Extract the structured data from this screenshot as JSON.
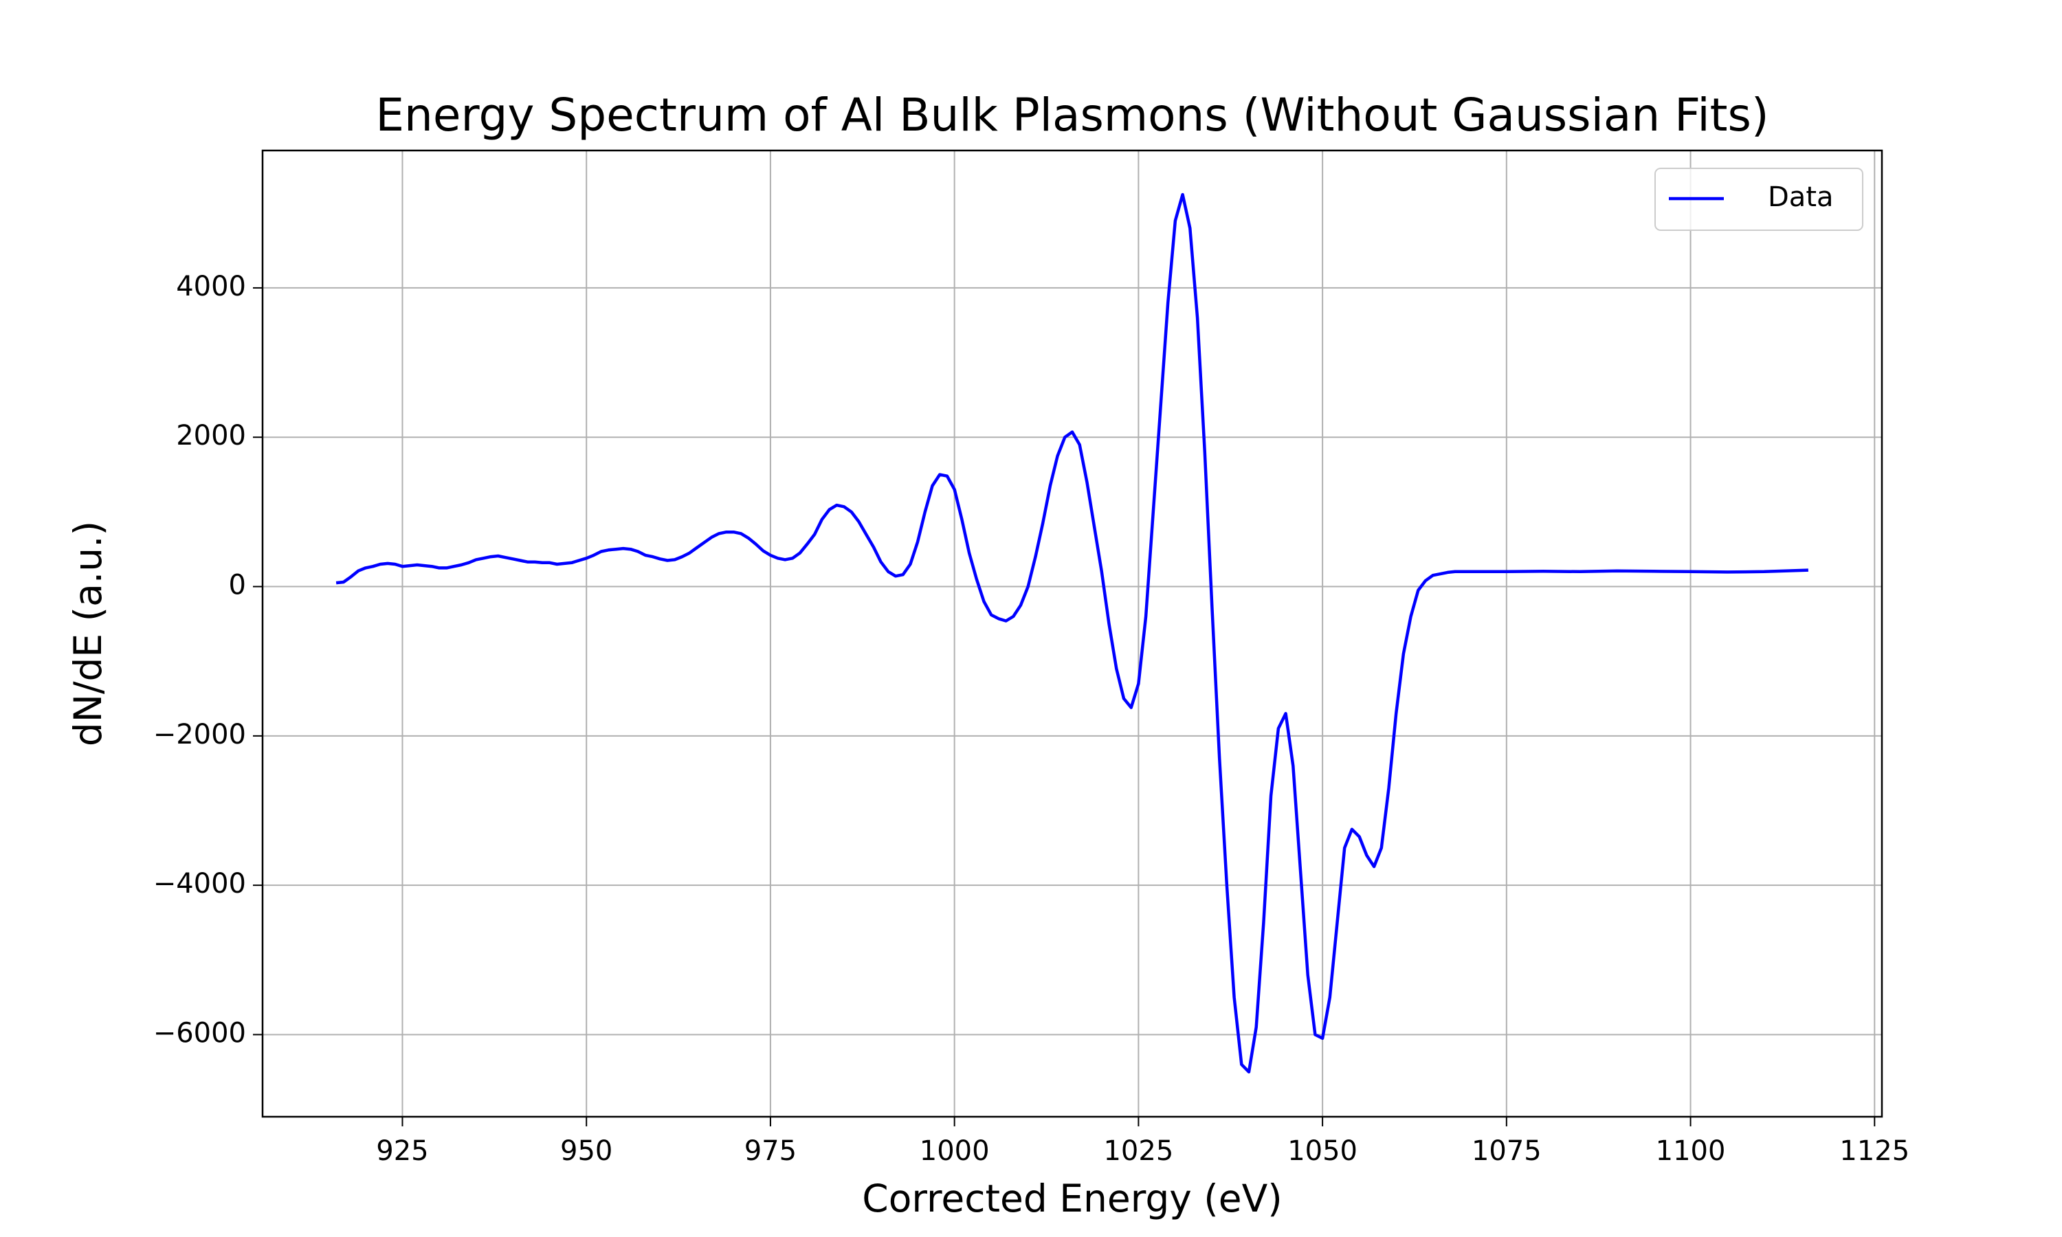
{
  "chart_data": {
    "type": "line",
    "title": "Energy Spectrum of Al Bulk Plasmons (Without Gaussian Fits)",
    "x_label": "Corrected Energy (eV)",
    "y_label": "dN/dE (a.u.)",
    "xlim": [
      906,
      1126
    ],
    "ylim": [
      -7100,
      5840
    ],
    "xticks": [
      925,
      950,
      975,
      1000,
      1025,
      1050,
      1075,
      1100,
      1125
    ],
    "yticks": [
      {
        "value": -6000,
        "label": "−6000"
      },
      {
        "value": -4000,
        "label": "−4000"
      },
      {
        "value": -2000,
        "label": "−2000"
      },
      0,
      2000,
      4000
    ],
    "grid": true,
    "legend": "upper right",
    "x": [
      916,
      917,
      918,
      919,
      920,
      921,
      922,
      923,
      924,
      925,
      926,
      927,
      928,
      929,
      930,
      931,
      932,
      933,
      934,
      935,
      936,
      937,
      938,
      939,
      940,
      941,
      942,
      943,
      944,
      945,
      946,
      947,
      948,
      949,
      950,
      951,
      952,
      953,
      954,
      955,
      956,
      957,
      958,
      959,
      960,
      961,
      962,
      963,
      964,
      965,
      966,
      967,
      968,
      969,
      970,
      971,
      972,
      973,
      974,
      975,
      976,
      977,
      978,
      979,
      980,
      981,
      982,
      983,
      984,
      985,
      986,
      987,
      988,
      989,
      990,
      991,
      992,
      993,
      994,
      995,
      996,
      997,
      998,
      999,
      1000,
      1001,
      1002,
      1003,
      1004,
      1005,
      1006,
      1007,
      1008,
      1009,
      1010,
      1011,
      1012,
      1013,
      1014,
      1015,
      1016,
      1017,
      1018,
      1019,
      1020,
      1021,
      1022,
      1023,
      1024,
      1025,
      1026,
      1027,
      1028,
      1029,
      1030,
      1031,
      1032,
      1033,
      1034,
      1035,
      1036,
      1037,
      1038,
      1039,
      1040,
      1041,
      1042,
      1043,
      1044,
      1045,
      1046,
      1047,
      1048,
      1049,
      1050,
      1051,
      1052,
      1053,
      1054,
      1055,
      1056,
      1057,
      1058,
      1059,
      1060,
      1061,
      1062,
      1063,
      1064,
      1065,
      1066,
      1067,
      1068,
      1070,
      1075,
      1080,
      1085,
      1090,
      1095,
      1100,
      1105,
      1110,
      1116
    ],
    "series": [
      {
        "name": "Data",
        "color": "#0000ff",
        "values": [
          50,
          60,
          130,
          210,
          250,
          270,
          300,
          310,
          300,
          270,
          280,
          290,
          280,
          270,
          250,
          250,
          270,
          290,
          320,
          360,
          380,
          400,
          410,
          390,
          370,
          350,
          330,
          330,
          320,
          320,
          300,
          310,
          320,
          350,
          380,
          420,
          470,
          490,
          500,
          510,
          500,
          470,
          420,
          400,
          370,
          350,
          360,
          400,
          450,
          520,
          590,
          660,
          710,
          730,
          730,
          710,
          650,
          570,
          480,
          420,
          380,
          360,
          380,
          450,
          570,
          700,
          900,
          1030,
          1090,
          1070,
          1000,
          870,
          700,
          530,
          330,
          200,
          140,
          160,
          300,
          600,
          1000,
          1350,
          1500,
          1480,
          1300,
          900,
          450,
          100,
          -200,
          -380,
          -430,
          -460,
          -400,
          -250,
          0,
          400,
          850,
          1350,
          1750,
          2000,
          2070,
          1900,
          1400,
          800,
          200,
          -500,
          -1100,
          -1500,
          -1620,
          -1300,
          -400,
          1000,
          2400,
          3800,
          4900,
          5250,
          4800,
          3600,
          1800,
          -300,
          -2300,
          -4000,
          -5500,
          -6400,
          -6500,
          -5900,
          -4500,
          -2800,
          -1900,
          -1700,
          -2400,
          -3800,
          -5200,
          -6000,
          -6050,
          -5500,
          -4500,
          -3500,
          -3250,
          -3350,
          -3600,
          -3750,
          -3500,
          -2700,
          -1700,
          -900,
          -400,
          -50,
          80,
          150,
          170,
          190,
          200,
          200,
          200,
          205,
          200,
          210,
          205,
          200,
          195,
          200,
          220
        ]
      }
    ]
  }
}
